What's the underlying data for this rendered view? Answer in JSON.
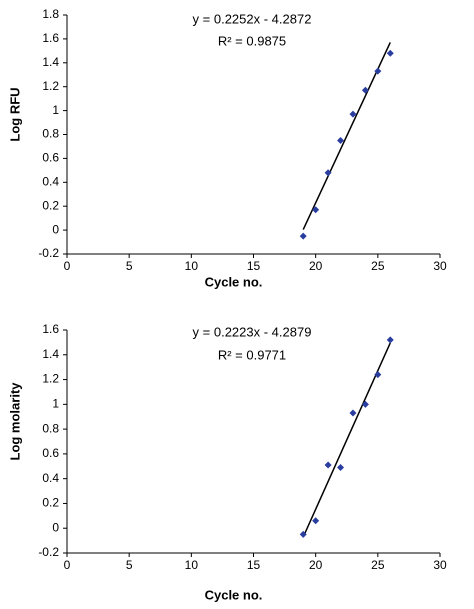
{
  "chart_data": [
    {
      "type": "scatter",
      "equation": "y = 0.2252x - 4.2872",
      "r_squared": "R² = 0.9875",
      "x_label": "Cycle no.",
      "y_label": "Log RFU",
      "x": [
        19,
        20,
        21,
        22,
        23,
        24,
        25,
        26
      ],
      "values": [
        -0.05,
        0.17,
        0.48,
        0.75,
        0.97,
        1.17,
        1.33,
        1.48
      ],
      "color": "#2a3ea0",
      "trendline": true,
      "xlim": [
        0,
        30
      ],
      "xticks": [
        0,
        5,
        10,
        15,
        20,
        25,
        30
      ],
      "ylim": [
        -0.2,
        1.8
      ],
      "yticks": [
        -0.2,
        0,
        0.2,
        0.4,
        0.6,
        0.8,
        1,
        1.2,
        1.4,
        1.6,
        1.8
      ]
    },
    {
      "type": "scatter",
      "equation": "y = 0.2223x - 4.2879",
      "r_squared": "R² = 0.9771",
      "x_label": "Cycle no.",
      "y_label": "Log molarity",
      "x": [
        19,
        20,
        21,
        22,
        23,
        24,
        25,
        26
      ],
      "values": [
        -0.05,
        0.06,
        0.51,
        0.49,
        0.93,
        1.0,
        1.24,
        1.52
      ],
      "color": "#2a3ea0",
      "trendline": true,
      "xlim": [
        0,
        30
      ],
      "xticks": [
        0,
        5,
        10,
        15,
        20,
        25,
        30
      ],
      "ylim": [
        -0.2,
        1.6
      ],
      "yticks": [
        -0.2,
        0,
        0.2,
        0.4,
        0.6,
        0.8,
        1,
        1.2,
        1.4,
        1.6
      ]
    }
  ]
}
